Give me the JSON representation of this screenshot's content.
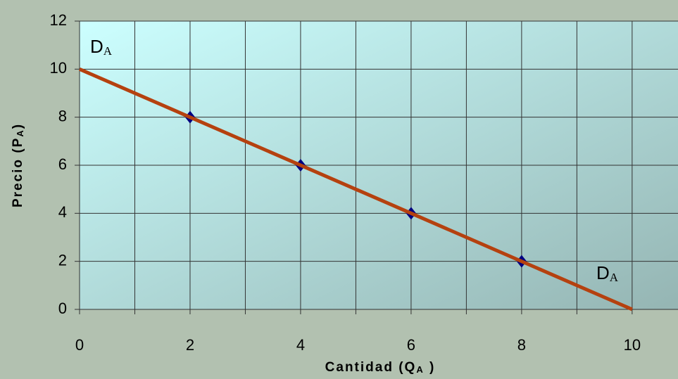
{
  "chart_data": {
    "type": "line",
    "xlabel": [
      "Cantidad (Q",
      "A",
      " )"
    ],
    "ylabel": [
      "Precio (P",
      "A",
      ")"
    ],
    "annotations": [
      {
        "main": "D",
        "sub": "A"
      },
      {
        "main": "D",
        "sub": "A"
      }
    ],
    "series": [
      {
        "color": "#b5410f",
        "x": [
          0,
          10
        ],
        "values": [
          10,
          0
        ]
      },
      {
        "color": "#000080",
        "marker": "diamond",
        "x": [
          2,
          4,
          6,
          8
        ],
        "values": [
          8,
          6,
          4,
          2
        ]
      }
    ],
    "xlim": [
      0,
      10.83
    ],
    "xticks": [
      0,
      2,
      4,
      6,
      8,
      10
    ],
    "x_minor_grid": [
      1,
      3,
      5,
      7,
      9
    ],
    "ylim": [
      0,
      12
    ],
    "yticks": [
      0,
      2,
      4,
      6,
      8,
      10,
      12
    ],
    "grid": true
  }
}
